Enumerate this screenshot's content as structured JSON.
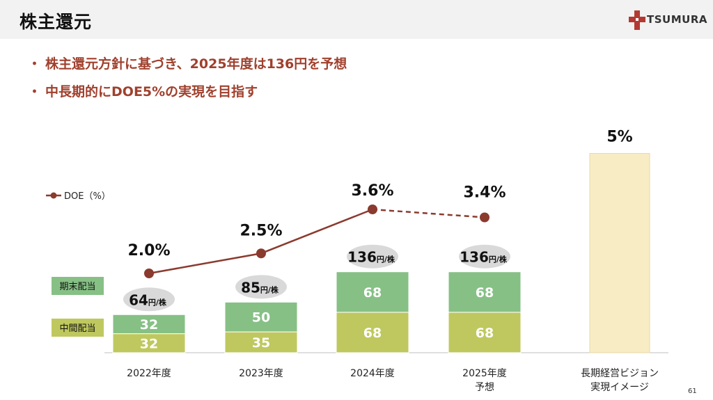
{
  "header": {
    "title": "株主還元",
    "logo_text": "TSUMURA"
  },
  "bullets": [
    "株主還元方針に基づき、2025年度は136円を予想",
    "中長期的にDOE5%の実現を目指す"
  ],
  "bullet_marker": "・",
  "chart_data": {
    "type": "bar",
    "stacked": true,
    "categories": [
      "2022年度",
      "2023年度",
      "2024年度",
      "2025年度\n予想",
      "長期経営ビジョン\n実現イメージ"
    ],
    "series": [
      {
        "name": "中間配当",
        "values": [
          32,
          35,
          68,
          68,
          null
        ],
        "color": "#bfc85e"
      },
      {
        "name": "期末配当",
        "values": [
          32,
          50,
          68,
          68,
          null
        ],
        "color": "#86c085"
      }
    ],
    "totals": [
      64,
      85,
      136,
      136,
      null
    ],
    "total_unit": "円/株",
    "line": {
      "name": "DOE（%）",
      "values": [
        2.0,
        2.5,
        3.6,
        3.4
      ],
      "labels": [
        "2.0%",
        "2.5%",
        "3.6%",
        "3.4%"
      ],
      "color": "#8b3a2e",
      "forecast_from_index": 2
    },
    "vision": {
      "label": "5%",
      "value": 5,
      "color": "#f8ecc5"
    },
    "legend": {
      "doe": "DOE（%）",
      "kimatsu": "期末配当",
      "chukan": "中間配当"
    },
    "legend_placement": "left"
  },
  "page_number": "61"
}
